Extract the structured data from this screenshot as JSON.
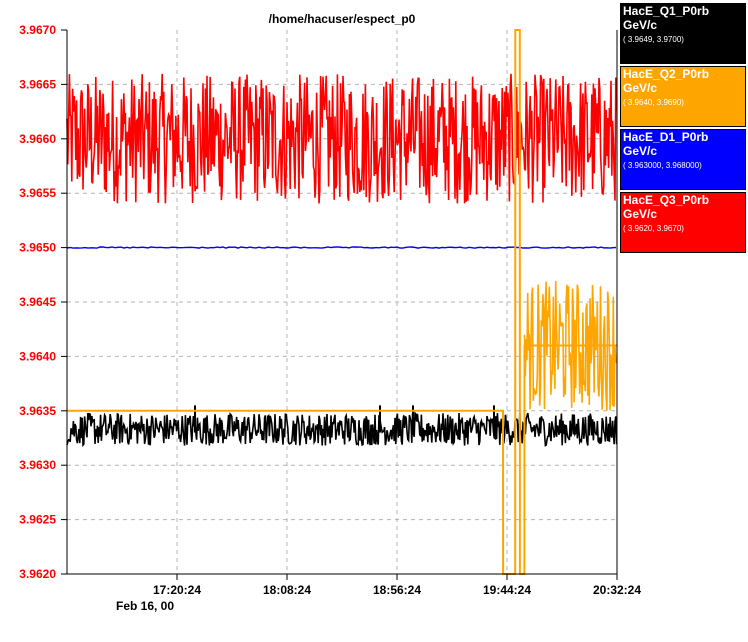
{
  "chart_data": {
    "type": "line",
    "title": "/home/hacuser/espect_p0",
    "date_label": "Feb 16, 00",
    "ylim": [
      3.962,
      3.967
    ],
    "y_ticks": [
      "3.9620",
      "3.9625",
      "3.9630",
      "3.9635",
      "3.9640",
      "3.9645",
      "3.9650",
      "3.9655",
      "3.9660",
      "3.9665",
      "3.9670"
    ],
    "x_ticks": [
      "17:20:24",
      "18:08:24",
      "18:56:24",
      "19:44:24",
      "20:32:24"
    ],
    "x_range": [
      "16:32:24",
      "20:32:24"
    ],
    "grid": true,
    "series": [
      {
        "name": "HacE_Q1_P0rb",
        "unit": "GeV/c",
        "range": "( 3.9649,  3.9700)",
        "color": "#000000",
        "text_color": "#ffffff",
        "pattern": "noisy band around 3.9633 (3.96318 to 3.96348) across the whole time span, occasional spikes to 3.9635"
      },
      {
        "name": "HacE_Q2_P0rb",
        "unit": "GeV/c",
        "range": "( 3.9640,  3.9690)",
        "color": "#ffa500",
        "text_color": "#ffffff",
        "x": [
          "16:32:24",
          "19:42:40",
          "19:42:41",
          "19:48:00",
          "19:48:01",
          "19:50:00",
          "19:50:01",
          "19:52:00",
          "19:52:01",
          "20:32:24"
        ],
        "values": [
          3.9635,
          3.9635,
          3.962,
          3.962,
          3.967,
          3.967,
          3.962,
          3.962,
          3.9641,
          3.9641
        ],
        "pattern_after_jump": "noisy band 3.9635 to 3.9647 after 19:52"
      },
      {
        "name": "HacE_D1_P0rb",
        "unit": "GeV/c",
        "range": "( 3.963000,  3.968000)",
        "color": "#0000ff",
        "text_color": "#ffffff",
        "pattern": "flat line at 3.9650 across the whole time span"
      },
      {
        "name": "HacE_Q3_P0rb",
        "unit": "GeV/c",
        "range": "( 3.9620,  3.9670)",
        "color": "#ff0000",
        "text_color": "#ffffff",
        "pattern": "noisy band around 3.9660 (3.9654 to 3.9666) across the whole time span"
      }
    ]
  }
}
